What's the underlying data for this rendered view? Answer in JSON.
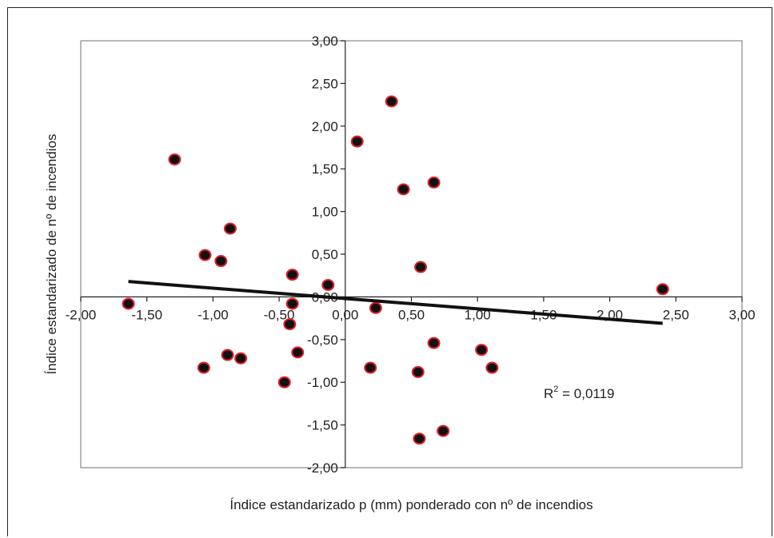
{
  "chart_data": {
    "type": "scatter",
    "title": "",
    "xlabel": "Índice estandarizado p (mm) ponderado con nº de incendios",
    "ylabel": "Índice estandarizado de nº de incendios",
    "xlim": [
      -2.0,
      3.0
    ],
    "ylim": [
      -2.0,
      3.0
    ],
    "x_ticks": [
      "-2,00",
      "-1,50",
      "-1,00",
      "-0,50",
      "0,00",
      "0,50",
      "1,00",
      "1,50",
      "2,00",
      "2,50",
      "3,00"
    ],
    "y_ticks": [
      "3,00",
      "2,50",
      "2,00",
      "1,50",
      "1,00",
      "0,50",
      "0,00",
      "-0,50",
      "-1,00",
      "-1,50",
      "-2,00"
    ],
    "grid": false,
    "legend": "none",
    "points": [
      {
        "x": -1.64,
        "y": -0.08
      },
      {
        "x": -1.29,
        "y": 1.61
      },
      {
        "x": -1.06,
        "y": 0.49
      },
      {
        "x": -1.07,
        "y": -0.83
      },
      {
        "x": -0.94,
        "y": 0.42
      },
      {
        "x": -0.89,
        "y": -0.68
      },
      {
        "x": -0.87,
        "y": 0.8
      },
      {
        "x": -0.79,
        "y": -0.72
      },
      {
        "x": -0.46,
        "y": -1.0
      },
      {
        "x": -0.42,
        "y": -0.32
      },
      {
        "x": -0.4,
        "y": 0.26
      },
      {
        "x": -0.4,
        "y": -0.08
      },
      {
        "x": -0.36,
        "y": -0.65
      },
      {
        "x": -0.13,
        "y": 0.14
      },
      {
        "x": 0.09,
        "y": 1.82
      },
      {
        "x": 0.19,
        "y": -0.83
      },
      {
        "x": 0.23,
        "y": -0.13
      },
      {
        "x": 0.35,
        "y": 2.29
      },
      {
        "x": 0.44,
        "y": 1.26
      },
      {
        "x": 0.55,
        "y": -0.88
      },
      {
        "x": 0.56,
        "y": -1.66
      },
      {
        "x": 0.57,
        "y": 0.35
      },
      {
        "x": 0.67,
        "y": 1.34
      },
      {
        "x": 0.67,
        "y": -0.54
      },
      {
        "x": 0.74,
        "y": -1.57
      },
      {
        "x": 1.03,
        "y": -0.62
      },
      {
        "x": 1.11,
        "y": -0.83
      },
      {
        "x": 2.4,
        "y": 0.09
      }
    ],
    "trendline": {
      "x": [
        -1.64,
        2.4
      ],
      "y": [
        0.18,
        -0.31
      ]
    },
    "annotation": {
      "text_r": "R",
      "text_sup": "2",
      "text_rest": " = 0,0119"
    },
    "colors": {
      "marker_fill": "#111111",
      "marker_edge": "#e0202a",
      "trendline": "#111111",
      "plot_border": "#888888",
      "axes": "#222222"
    }
  }
}
